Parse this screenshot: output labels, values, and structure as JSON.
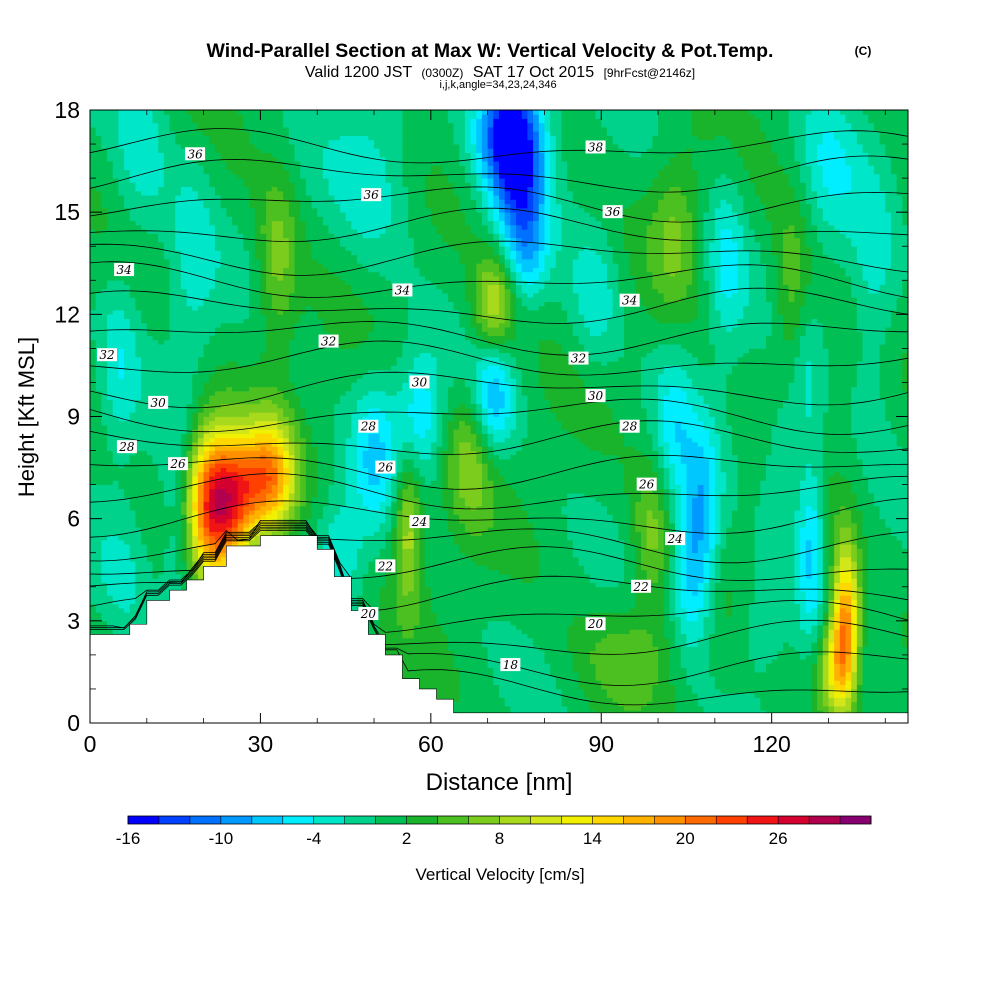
{
  "chart_data": {
    "type": "contour",
    "title": "Wind-Parallel Section at Max W: Vertical Velocity & Pot.Temp.",
    "copyright_mark": "(C)",
    "subtitle": {
      "valid_prefix": "Valid 1200 JST",
      "utc": "(0300Z)",
      "date": "SAT 17 Oct 2015",
      "forecast": "[9hrFcst@2146z]"
    },
    "grid_info": "i,j,k,angle=34,23,24,346",
    "xlabel": "Distance [nm]",
    "ylabel": "Height [Kft MSL]",
    "xlim": [
      0,
      144
    ],
    "ylim": [
      0,
      18
    ],
    "x_ticks": [
      "0",
      "30",
      "60",
      "90",
      "120"
    ],
    "x_tick_values": [
      0,
      30,
      60,
      90,
      120
    ],
    "y_ticks": [
      "0",
      "3",
      "6",
      "9",
      "12",
      "15",
      "18"
    ],
    "y_tick_values": [
      0,
      3,
      6,
      9,
      12,
      15,
      18
    ],
    "colorbar": {
      "label": "Vertical Velocity [cm/s]",
      "tick_labels": [
        "-16",
        "-10",
        "-4",
        "2",
        "8",
        "14",
        "20",
        "26"
      ],
      "tick_values": [
        -16,
        -10,
        -4,
        2,
        8,
        14,
        20,
        26
      ],
      "min": -16,
      "max": 32,
      "step": 2,
      "colors": [
        "#0000ff",
        "#0040ff",
        "#0070ff",
        "#0099ff",
        "#00c8ff",
        "#00eeff",
        "#00e6c8",
        "#00d28c",
        "#00c055",
        "#1ab42c",
        "#4cc020",
        "#7ccc1e",
        "#a8d91c",
        "#d2e619",
        "#f0f000",
        "#ffd700",
        "#ffb300",
        "#ff9000",
        "#ff6a00",
        "#ff4000",
        "#f01414",
        "#d40030",
        "#b0004e",
        "#880070"
      ]
    },
    "terrain_profile": [
      [
        0,
        2.6
      ],
      [
        7,
        2.6
      ],
      [
        7,
        2.9
      ],
      [
        10,
        2.9
      ],
      [
        10,
        3.6
      ],
      [
        14,
        3.6
      ],
      [
        14,
        3.9
      ],
      [
        17,
        3.9
      ],
      [
        17,
        4.2
      ],
      [
        20,
        4.2
      ],
      [
        20,
        4.6
      ],
      [
        24,
        4.6
      ],
      [
        24,
        5.2
      ],
      [
        30,
        5.2
      ],
      [
        30,
        5.5
      ],
      [
        40,
        5.5
      ],
      [
        40,
        5.1
      ],
      [
        43,
        5.1
      ],
      [
        43,
        4.3
      ],
      [
        46,
        4.3
      ],
      [
        46,
        3.3
      ],
      [
        49,
        3.3
      ],
      [
        49,
        2.6
      ],
      [
        52,
        2.6
      ],
      [
        52,
        2.0
      ],
      [
        55,
        2.0
      ],
      [
        55,
        1.3
      ],
      [
        58,
        1.3
      ],
      [
        58,
        1.0
      ],
      [
        61,
        1.0
      ],
      [
        61,
        0.7
      ],
      [
        64,
        0.7
      ],
      [
        64,
        0.3
      ],
      [
        144,
        0.3
      ]
    ],
    "isentropes": {
      "variable": "potential temperature",
      "levels": [
        18,
        20,
        22,
        24,
        26,
        28,
        30,
        32,
        34,
        36,
        38
      ],
      "labels": [
        {
          "text": "36",
          "x": 18.5,
          "y": 16.7
        },
        {
          "text": "36",
          "x": 49.5,
          "y": 15.5
        },
        {
          "text": "38",
          "x": 89,
          "y": 16.9
        },
        {
          "text": "36",
          "x": 92,
          "y": 15.0
        },
        {
          "text": "34",
          "x": 6,
          "y": 13.3
        },
        {
          "text": "34",
          "x": 55,
          "y": 12.7
        },
        {
          "text": "34",
          "x": 95,
          "y": 12.4
        },
        {
          "text": "32",
          "x": 3,
          "y": 10.8
        },
        {
          "text": "32",
          "x": 42,
          "y": 11.2
        },
        {
          "text": "32",
          "x": 86,
          "y": 10.7
        },
        {
          "text": "30",
          "x": 12,
          "y": 9.4
        },
        {
          "text": "30",
          "x": 58,
          "y": 10.0
        },
        {
          "text": "30",
          "x": 89,
          "y": 9.6
        },
        {
          "text": "28",
          "x": 6.5,
          "y": 8.1
        },
        {
          "text": "28",
          "x": 49,
          "y": 8.7
        },
        {
          "text": "28",
          "x": 95,
          "y": 8.7
        },
        {
          "text": "26",
          "x": 15.5,
          "y": 7.6
        },
        {
          "text": "26",
          "x": 52,
          "y": 7.5
        },
        {
          "text": "26",
          "x": 98,
          "y": 7.0
        },
        {
          "text": "24",
          "x": 58,
          "y": 5.9
        },
        {
          "text": "24",
          "x": 103,
          "y": 5.4
        },
        {
          "text": "22",
          "x": 52,
          "y": 4.6
        },
        {
          "text": "22",
          "x": 97,
          "y": 4.0
        },
        {
          "text": "20",
          "x": 49,
          "y": 3.2
        },
        {
          "text": "20",
          "x": 89,
          "y": 2.9
        },
        {
          "text": "18",
          "x": 74,
          "y": 1.7
        }
      ]
    },
    "w_features": [
      {
        "x": 22,
        "y": 6.5,
        "sx": 3.6,
        "sy": 1.5,
        "w": 26
      },
      {
        "x": 31.5,
        "y": 7.2,
        "sx": 3.2,
        "sy": 1.2,
        "w": 18
      },
      {
        "x": 26.5,
        "y": 6.7,
        "sx": 2.5,
        "sy": 1.1,
        "w": 8
      },
      {
        "x": 16,
        "y": 5.8,
        "sx": 2.5,
        "sy": 2.0,
        "w": -6
      },
      {
        "x": 6,
        "y": 4.3,
        "sx": 3.5,
        "sy": 1.6,
        "w": -3
      },
      {
        "x": 74,
        "y": 17.4,
        "sx": 4.0,
        "sy": 1.3,
        "w": -18
      },
      {
        "x": 76,
        "y": 15.3,
        "sx": 3.2,
        "sy": 1.4,
        "w": -9
      },
      {
        "x": 77,
        "y": 13.6,
        "sx": 2.3,
        "sy": 1.0,
        "w": -4
      },
      {
        "x": 71,
        "y": 12.3,
        "sx": 2.5,
        "sy": 1.0,
        "w": 9
      },
      {
        "x": 71,
        "y": 9.5,
        "sx": 2.6,
        "sy": 1.2,
        "w": -8
      },
      {
        "x": 58,
        "y": 9.0,
        "sx": 3.0,
        "sy": 1.3,
        "w": -7
      },
      {
        "x": 50,
        "y": 8.0,
        "sx": 2.8,
        "sy": 1.6,
        "w": -6
      },
      {
        "x": 56,
        "y": 5.8,
        "sx": 1.8,
        "sy": 1.6,
        "w": 9
      },
      {
        "x": 44,
        "y": 5.0,
        "sx": 3.0,
        "sy": 1.2,
        "w": -5
      },
      {
        "x": 67,
        "y": 7.8,
        "sx": 3.0,
        "sy": 1.5,
        "w": 6
      },
      {
        "x": 33,
        "y": 13.5,
        "sx": 2.5,
        "sy": 1.8,
        "w": 6
      },
      {
        "x": 18,
        "y": 13.5,
        "sx": 3.0,
        "sy": 2.2,
        "w": -4
      },
      {
        "x": 50,
        "y": 16.0,
        "sx": 5.5,
        "sy": 1.8,
        "w": -4
      },
      {
        "x": 9,
        "y": 16.5,
        "sx": 3.5,
        "sy": 2.0,
        "w": -4
      },
      {
        "x": 5,
        "y": 10.5,
        "sx": 2.5,
        "sy": 1.8,
        "w": -4
      },
      {
        "x": 106,
        "y": 4.3,
        "sx": 2.6,
        "sy": 1.6,
        "w": -8
      },
      {
        "x": 108,
        "y": 6.5,
        "sx": 2.2,
        "sy": 1.6,
        "w": -6
      },
      {
        "x": 103,
        "y": 8.5,
        "sx": 2.6,
        "sy": 1.8,
        "w": -5
      },
      {
        "x": 99,
        "y": 5.5,
        "sx": 2.5,
        "sy": 1.5,
        "w": 6
      },
      {
        "x": 127,
        "y": 5.3,
        "sx": 1.6,
        "sy": 1.8,
        "w": -7
      },
      {
        "x": 122,
        "y": 7.5,
        "sx": 2.5,
        "sy": 2.0,
        "w": -4
      },
      {
        "x": 133,
        "y": 3.0,
        "sx": 1.7,
        "sy": 1.6,
        "w": 18
      },
      {
        "x": 131,
        "y": 1.6,
        "sx": 2.2,
        "sy": 1.0,
        "w": 10
      },
      {
        "x": 126,
        "y": 10.5,
        "sx": 2.0,
        "sy": 2.0,
        "w": -4
      },
      {
        "x": 138,
        "y": 12.5,
        "sx": 3.0,
        "sy": 2.5,
        "w": -4
      },
      {
        "x": 112,
        "y": 13.5,
        "sx": 2.5,
        "sy": 2.0,
        "w": -5
      },
      {
        "x": 130,
        "y": 16.5,
        "sx": 4.0,
        "sy": 2.0,
        "w": -4
      },
      {
        "x": 124,
        "y": 12.5,
        "sx": 2.5,
        "sy": 2.0,
        "w": 6
      },
      {
        "x": 103,
        "y": 14.5,
        "sx": 3.0,
        "sy": 1.5,
        "w": 5
      },
      {
        "x": 89,
        "y": 12.5,
        "sx": 3.0,
        "sy": 1.5,
        "w": -4
      },
      {
        "x": 118,
        "y": 2.8,
        "sx": 3.0,
        "sy": 1.2,
        "w": -3
      },
      {
        "x": 95,
        "y": 2.0,
        "sx": 6.0,
        "sy": 1.0,
        "w": 4
      }
    ],
    "w_base": 1.0
  }
}
